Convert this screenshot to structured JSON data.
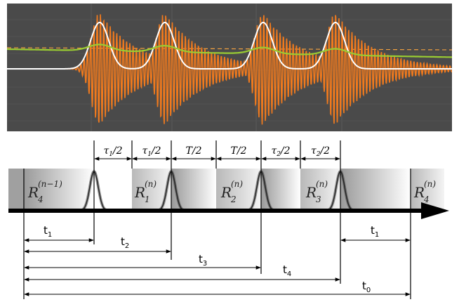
{
  "top_plot": {
    "background": "#4a4a4a",
    "signal_color": "#f07a1e",
    "envelope_color": "#ffffff",
    "drift_color": "#9acd32",
    "dashed_color": "#f0a040"
  },
  "intervals": [
    {
      "pre": "τ",
      "sub": "1",
      "post": "/2"
    },
    {
      "pre": "τ",
      "sub": "1",
      "post": "/2"
    },
    {
      "pre": "T/2",
      "sub": "",
      "post": ""
    },
    {
      "pre": "T/2",
      "sub": "",
      "post": ""
    },
    {
      "pre": "τ",
      "sub": "2",
      "post": "/2"
    },
    {
      "pre": "τ",
      "sub": "2",
      "post": "/2"
    }
  ],
  "r_labels": [
    {
      "base": "R",
      "sub": "4",
      "sup": "(n−1)"
    },
    {
      "base": "R",
      "sub": "1",
      "sup": "(n)"
    },
    {
      "base": "R",
      "sub": "2",
      "sup": "(n)"
    },
    {
      "base": "R",
      "sub": "3",
      "sup": "(n)"
    },
    {
      "base": "R",
      "sub": "4",
      "sup": "(n)"
    }
  ],
  "times": [
    {
      "base": "t",
      "sub": "1"
    },
    {
      "base": "t",
      "sub": "2"
    },
    {
      "base": "t",
      "sub": "3"
    },
    {
      "base": "t",
      "sub": "4"
    },
    {
      "base": "t",
      "sub": "0"
    },
    {
      "base": "t",
      "sub": "1"
    }
  ]
}
